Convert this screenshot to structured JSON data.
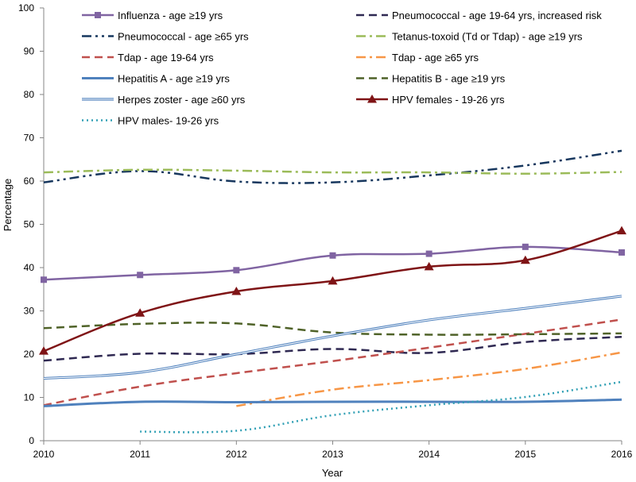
{
  "chart_data": {
    "type": "line",
    "title": "",
    "xlabel": "Year",
    "ylabel": "Percentage",
    "x": [
      2010,
      2011,
      2012,
      2013,
      2014,
      2015,
      2016
    ],
    "x_tick_labels": [
      "2010",
      "2011",
      "2012",
      "2013",
      "2014",
      "2015",
      "2016"
    ],
    "ylim": [
      0,
      100
    ],
    "y_ticks": [
      0,
      10,
      20,
      30,
      40,
      50,
      60,
      70,
      80,
      90,
      100
    ],
    "y_tick_labels": [
      "0",
      "10",
      "20",
      "30",
      "40",
      "50",
      "60",
      "70",
      "80",
      "90",
      "100"
    ],
    "grid": false,
    "legend_position": "top",
    "series": [
      {
        "name": "Influenza - age ≥19 yrs",
        "key": "influenza",
        "color": "#8064A2",
        "style": "solid",
        "marker": "square",
        "values": [
          37.2,
          38.3,
          39.4,
          42.8,
          43.2,
          44.8,
          43.5
        ]
      },
      {
        "name": "Pneumococcal - age 19-64 yrs, increased risk",
        "key": "pneumo-risk",
        "color": "#2F2952",
        "style": "dash",
        "marker": "none",
        "values": [
          18.5,
          20.1,
          20.0,
          21.2,
          20.3,
          22.8,
          24.0
        ]
      },
      {
        "name": "Pneumococcal - age ≥65 yrs",
        "key": "pneumo-65",
        "color": "#17375E",
        "style": "dash-dot-dot",
        "marker": "none",
        "values": [
          59.7,
          62.3,
          59.9,
          59.7,
          61.3,
          63.6,
          67.0
        ]
      },
      {
        "name": "Tetanus-toxoid (Td or Tdap) - age ≥19 yrs",
        "key": "tetanus",
        "color": "#9BBB59",
        "style": "dash-dot",
        "marker": "none",
        "values": [
          62.0,
          62.6,
          62.4,
          62.0,
          62.0,
          61.7,
          62.1
        ]
      },
      {
        "name": "Tdap - age 19-64 yrs",
        "key": "tdap-19-64",
        "color": "#C0504D",
        "style": "dash",
        "marker": "none",
        "values": [
          8.2,
          12.5,
          15.6,
          18.4,
          21.5,
          24.7,
          28.0
        ]
      },
      {
        "name": "Tdap - age ≥65 yrs",
        "key": "tdap-65",
        "color": "#F79646",
        "style": "dash-dot",
        "marker": "none",
        "values": [
          null,
          null,
          8.0,
          11.8,
          14.0,
          16.6,
          20.4
        ]
      },
      {
        "name": "Hepatitis A - age ≥19 yrs",
        "key": "hepa",
        "color": "#4F81BD",
        "style": "solid-thick",
        "marker": "none",
        "values": [
          8.0,
          9.0,
          8.9,
          9.0,
          9.0,
          9.0,
          9.5
        ]
      },
      {
        "name": "Hepatitis B - age ≥19 yrs",
        "key": "hepb",
        "color": "#4F6228",
        "style": "dash",
        "marker": "none",
        "values": [
          26.0,
          27.0,
          27.1,
          25.0,
          24.5,
          24.6,
          24.8
        ]
      },
      {
        "name": "Herpes zoster - age ≥60 yrs",
        "key": "zoster",
        "color": "#4F81BD",
        "style": "double",
        "marker": "none",
        "values": [
          14.4,
          15.8,
          20.0,
          24.2,
          27.9,
          30.6,
          33.4
        ]
      },
      {
        "name": "HPV females - 19-26 yrs",
        "key": "hpv-f",
        "color": "#7F1416",
        "style": "solid",
        "marker": "triangle",
        "values": [
          20.7,
          29.5,
          34.5,
          36.9,
          40.2,
          41.7,
          48.5
        ]
      },
      {
        "name": "HPV males- 19-26 yrs",
        "key": "hpv-m",
        "color": "#31A0B5",
        "style": "dot",
        "marker": "none",
        "values": [
          null,
          2.1,
          2.3,
          5.9,
          8.2,
          10.1,
          13.6
        ]
      }
    ]
  }
}
